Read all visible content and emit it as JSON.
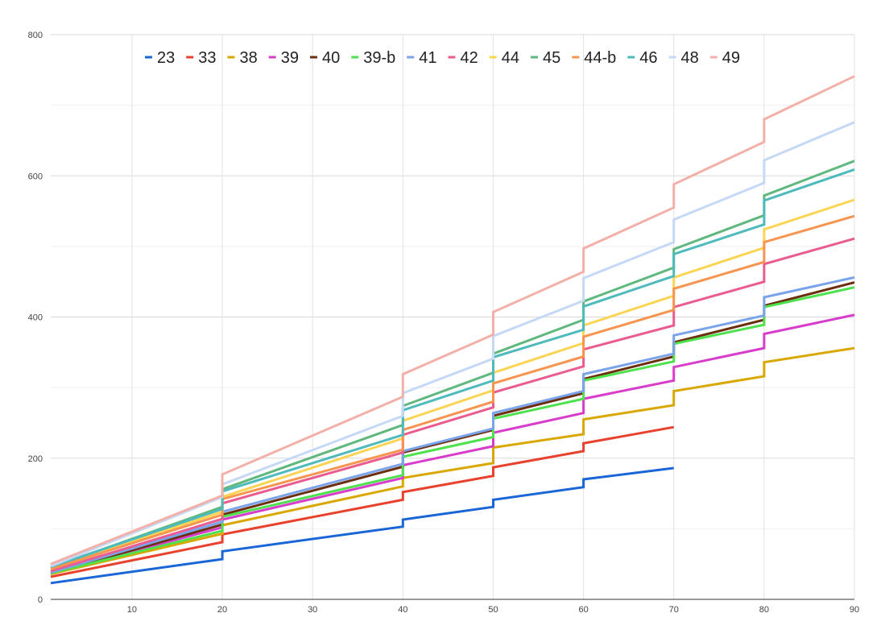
{
  "chart_data": {
    "type": "line",
    "title": "",
    "xlabel": "",
    "ylabel": "",
    "xlim": [
      1,
      90
    ],
    "ylim": [
      0,
      800
    ],
    "x_ticks": [
      10,
      20,
      30,
      40,
      50,
      60,
      70,
      80,
      90
    ],
    "y_ticks": [
      0,
      200,
      400,
      600,
      800
    ],
    "x_ticks_labels": [
      "10",
      "20",
      "30",
      "40",
      "50",
      "60",
      "70",
      "80",
      "90"
    ],
    "y_ticks_labels": [
      "0",
      "200",
      "400",
      "600",
      "800"
    ],
    "grid": true,
    "legend_position": "top",
    "series": [
      {
        "name": "23",
        "color": "#1a66d6",
        "points": [
          [
            1,
            23
          ],
          [
            20,
            57
          ],
          [
            20,
            68
          ],
          [
            40,
            103
          ],
          [
            40,
            113
          ],
          [
            50,
            131
          ],
          [
            50,
            141
          ],
          [
            60,
            159
          ],
          [
            60,
            170
          ],
          [
            70,
            186
          ]
        ]
      },
      {
        "name": "33",
        "color": "#e8412d",
        "points": [
          [
            1,
            32
          ],
          [
            20,
            81
          ],
          [
            20,
            92
          ],
          [
            40,
            141
          ],
          [
            40,
            152
          ],
          [
            50,
            175
          ],
          [
            50,
            187
          ],
          [
            60,
            210
          ],
          [
            60,
            221
          ],
          [
            70,
            244
          ]
        ]
      },
      {
        "name": "38",
        "color": "#d9a800",
        "points": [
          [
            1,
            36
          ],
          [
            20,
            93
          ],
          [
            20,
            105
          ],
          [
            40,
            160
          ],
          [
            40,
            172
          ],
          [
            50,
            193
          ],
          [
            50,
            215
          ],
          [
            60,
            234
          ],
          [
            60,
            255
          ],
          [
            70,
            275
          ],
          [
            70,
            295
          ],
          [
            80,
            316
          ],
          [
            80,
            336
          ],
          [
            90,
            356
          ]
        ]
      },
      {
        "name": "39",
        "color": "#d83ccb",
        "points": [
          [
            1,
            37
          ],
          [
            20,
            102
          ],
          [
            20,
            113
          ],
          [
            40,
            172
          ],
          [
            40,
            190
          ],
          [
            50,
            217
          ],
          [
            50,
            236
          ],
          [
            60,
            264
          ],
          [
            60,
            284
          ],
          [
            70,
            310
          ],
          [
            70,
            329
          ],
          [
            80,
            356
          ],
          [
            80,
            376
          ],
          [
            90,
            403
          ]
        ]
      },
      {
        "name": "40",
        "color": "#6b2f0e",
        "points": [
          [
            1,
            37
          ],
          [
            20,
            106
          ],
          [
            20,
            120
          ],
          [
            40,
            188
          ],
          [
            40,
            208
          ],
          [
            50,
            240
          ],
          [
            50,
            260
          ],
          [
            60,
            292
          ],
          [
            60,
            312
          ],
          [
            70,
            344
          ],
          [
            70,
            364
          ],
          [
            80,
            396
          ],
          [
            80,
            416
          ],
          [
            90,
            449
          ]
        ]
      },
      {
        "name": "39-b",
        "color": "#4ee14e",
        "points": [
          [
            1,
            37
          ],
          [
            20,
            97
          ],
          [
            20,
            117
          ],
          [
            40,
            176
          ],
          [
            40,
            202
          ],
          [
            50,
            230
          ],
          [
            50,
            256
          ],
          [
            60,
            284
          ],
          [
            60,
            310
          ],
          [
            70,
            337
          ],
          [
            70,
            362
          ],
          [
            80,
            389
          ],
          [
            80,
            414
          ],
          [
            90,
            442
          ]
        ]
      },
      {
        "name": "41",
        "color": "#7aa3ea",
        "points": [
          [
            1,
            38
          ],
          [
            20,
            110
          ],
          [
            20,
            124
          ],
          [
            40,
            192
          ],
          [
            40,
            210
          ],
          [
            50,
            242
          ],
          [
            50,
            264
          ],
          [
            60,
            295
          ],
          [
            60,
            319
          ],
          [
            70,
            348
          ],
          [
            70,
            374
          ],
          [
            80,
            402
          ],
          [
            80,
            428
          ],
          [
            90,
            456
          ]
        ]
      },
      {
        "name": "42",
        "color": "#ea5c8f",
        "points": [
          [
            1,
            40
          ],
          [
            20,
            114
          ],
          [
            20,
            136
          ],
          [
            40,
            208
          ],
          [
            40,
            233
          ],
          [
            50,
            272
          ],
          [
            50,
            293
          ],
          [
            60,
            330
          ],
          [
            60,
            354
          ],
          [
            70,
            388
          ],
          [
            70,
            414
          ],
          [
            80,
            450
          ],
          [
            80,
            475
          ],
          [
            90,
            511
          ]
        ]
      },
      {
        "name": "44",
        "color": "#fbd454",
        "points": [
          [
            1,
            44
          ],
          [
            20,
            124
          ],
          [
            20,
            145
          ],
          [
            40,
            228
          ],
          [
            40,
            253
          ],
          [
            50,
            296
          ],
          [
            50,
            321
          ],
          [
            60,
            363
          ],
          [
            60,
            388
          ],
          [
            70,
            430
          ],
          [
            70,
            456
          ],
          [
            80,
            498
          ],
          [
            80,
            524
          ],
          [
            90,
            566
          ]
        ]
      },
      {
        "name": "45",
        "color": "#5fb87e",
        "points": [
          [
            1,
            45
          ],
          [
            20,
            131
          ],
          [
            20,
            156
          ],
          [
            40,
            247
          ],
          [
            40,
            274
          ],
          [
            50,
            321
          ],
          [
            50,
            348
          ],
          [
            60,
            396
          ],
          [
            60,
            422
          ],
          [
            70,
            470
          ],
          [
            70,
            496
          ],
          [
            80,
            544
          ],
          [
            80,
            572
          ],
          [
            90,
            621
          ]
        ]
      },
      {
        "name": "44-b",
        "color": "#f7944f",
        "points": [
          [
            1,
            43
          ],
          [
            20,
            120
          ],
          [
            20,
            142
          ],
          [
            40,
            212
          ],
          [
            40,
            240
          ],
          [
            50,
            280
          ],
          [
            50,
            306
          ],
          [
            60,
            344
          ],
          [
            60,
            372
          ],
          [
            70,
            410
          ],
          [
            70,
            440
          ],
          [
            80,
            478
          ],
          [
            80,
            506
          ],
          [
            90,
            543
          ]
        ]
      },
      {
        "name": "46",
        "color": "#4fbabb",
        "points": [
          [
            1,
            46
          ],
          [
            20,
            128
          ],
          [
            20,
            153
          ],
          [
            40,
            233
          ],
          [
            40,
            268
          ],
          [
            50,
            310
          ],
          [
            50,
            343
          ],
          [
            60,
            382
          ],
          [
            60,
            415
          ],
          [
            70,
            458
          ],
          [
            70,
            489
          ],
          [
            80,
            531
          ],
          [
            80,
            565
          ],
          [
            90,
            609
          ]
        ]
      },
      {
        "name": "48",
        "color": "#c5d9f6",
        "points": [
          [
            1,
            47
          ],
          [
            20,
            145
          ],
          [
            20,
            163
          ],
          [
            40,
            260
          ],
          [
            40,
            292
          ],
          [
            50,
            341
          ],
          [
            50,
            373
          ],
          [
            60,
            423
          ],
          [
            60,
            455
          ],
          [
            70,
            506
          ],
          [
            70,
            538
          ],
          [
            80,
            590
          ],
          [
            80,
            622
          ],
          [
            90,
            676
          ]
        ]
      },
      {
        "name": "49",
        "color": "#f2b0a8",
        "points": [
          [
            1,
            50
          ],
          [
            20,
            147
          ],
          [
            20,
            177
          ],
          [
            40,
            287
          ],
          [
            40,
            319
          ],
          [
            50,
            375
          ],
          [
            50,
            407
          ],
          [
            60,
            464
          ],
          [
            60,
            497
          ],
          [
            70,
            555
          ],
          [
            70,
            588
          ],
          [
            80,
            648
          ],
          [
            80,
            680
          ],
          [
            90,
            741
          ]
        ]
      }
    ]
  }
}
